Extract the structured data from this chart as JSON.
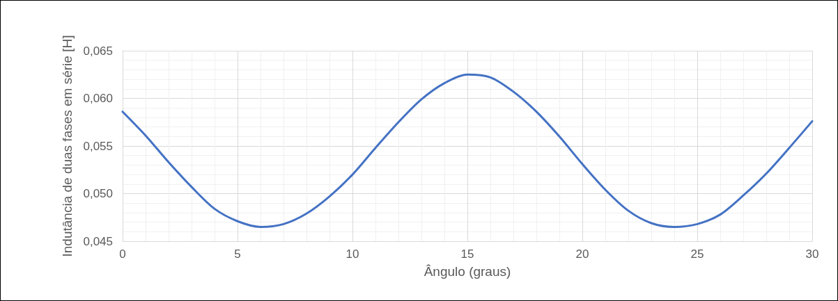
{
  "chart_data": {
    "type": "line",
    "xlabel": "Ângulo (graus)",
    "ylabel": "Indutância de duas fases em série [H]",
    "x": [
      0,
      1,
      2,
      3,
      4,
      5,
      6,
      7,
      8,
      9,
      10,
      11,
      12,
      13,
      14,
      15,
      16,
      17,
      18,
      19,
      20,
      21,
      22,
      23,
      24,
      25,
      26,
      27,
      28,
      29,
      30
    ],
    "series": [
      {
        "color": "#4472c4",
        "values": [
          0.0586,
          0.0561,
          0.0533,
          0.0507,
          0.0484,
          0.0471,
          0.0465,
          0.0468,
          0.0479,
          0.0497,
          0.052,
          0.0548,
          0.0575,
          0.0599,
          0.0616,
          0.0625,
          0.0622,
          0.0607,
          0.0586,
          0.056,
          0.0531,
          0.0504,
          0.0482,
          0.0469,
          0.0465,
          0.0468,
          0.0478,
          0.0498,
          0.0521,
          0.0548,
          0.0576
        ]
      }
    ],
    "xlim": [
      0,
      30
    ],
    "xticks": [
      0,
      5,
      10,
      15,
      20,
      25,
      30
    ],
    "ylim": [
      0.045,
      0.065
    ],
    "yticks": [
      {
        "value": 0.045,
        "label": "0,045"
      },
      {
        "value": 0.05,
        "label": "0,050"
      },
      {
        "value": 0.055,
        "label": "0,055"
      },
      {
        "value": 0.06,
        "label": "0,060"
      },
      {
        "value": 0.065,
        "label": "0,065"
      }
    ],
    "grid": true,
    "marker": "none",
    "line_style": "solid"
  }
}
